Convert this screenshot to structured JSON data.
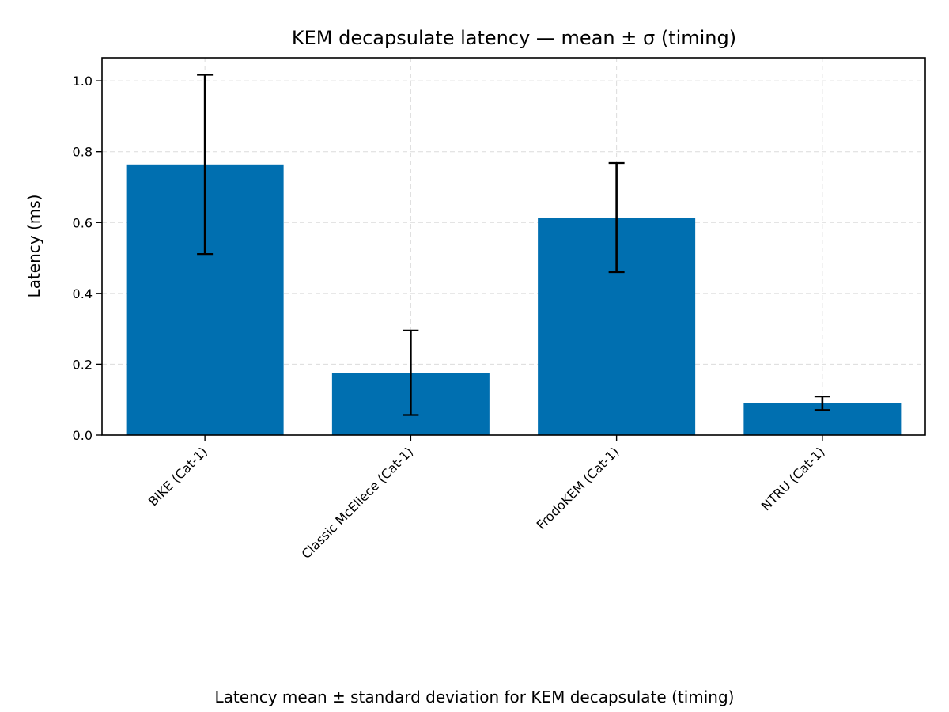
{
  "chart_data": {
    "type": "bar",
    "title": "KEM decapsulate latency — mean ± σ (timing)",
    "xlabel": "",
    "ylabel": "Latency (ms)",
    "categories": [
      "BIKE (Cat-1)",
      "Classic McEliece (Cat-1)",
      "FrodoKEM (Cat-1)",
      "NTRU (Cat-1)"
    ],
    "values": [
      0.764,
      0.176,
      0.614,
      0.09
    ],
    "errors": [
      0.253,
      0.119,
      0.154,
      0.019
    ],
    "ylim": [
      0,
      1.065
    ],
    "yticks": [
      "0.0",
      "0.2",
      "0.4",
      "0.6",
      "0.8",
      "1.0"
    ],
    "grid": true,
    "bar_color": "#006fb0",
    "caption": "Latency mean ± standard deviation for KEM decapsulate (timing)"
  }
}
